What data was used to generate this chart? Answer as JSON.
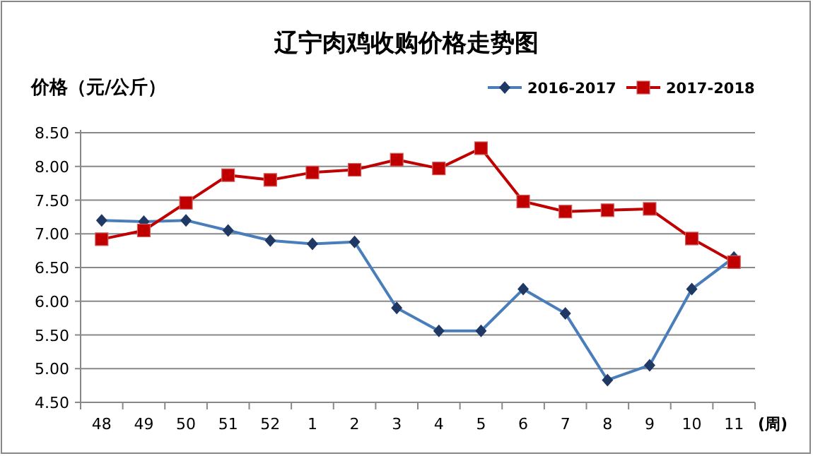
{
  "chart_data": {
    "type": "line",
    "title": "辽宁肉鸡收购价格走势图",
    "ylabel": "价格（元/公斤）",
    "xlabel": "(周)",
    "categories": [
      "48",
      "49",
      "50",
      "51",
      "52",
      "1",
      "2",
      "3",
      "4",
      "5",
      "6",
      "7",
      "8",
      "9",
      "10",
      "11"
    ],
    "series": [
      {
        "name": "2016-2017",
        "color": "#4a7ebb",
        "marker": "diamond",
        "values": [
          7.2,
          7.18,
          7.2,
          7.05,
          6.9,
          6.85,
          6.88,
          5.9,
          5.56,
          5.56,
          6.18,
          5.82,
          4.83,
          5.05,
          6.18,
          6.65
        ]
      },
      {
        "name": "2017-2018",
        "color": "#c00000",
        "marker": "square",
        "values": [
          6.92,
          7.05,
          7.46,
          7.87,
          7.8,
          7.91,
          7.95,
          8.1,
          7.97,
          8.27,
          7.48,
          7.33,
          7.35,
          7.37,
          6.93,
          6.58
        ]
      }
    ],
    "ylim": [
      4.5,
      8.5
    ],
    "yticks": [
      {
        "value": 4.5,
        "label": "4.50"
      },
      {
        "value": 5,
        "label": "5.00"
      },
      {
        "value": 5.5,
        "label": "5.50"
      },
      {
        "value": 6,
        "label": "6.00"
      },
      {
        "value": 6.5,
        "label": "6.50"
      },
      {
        "value": 7,
        "label": "7.00"
      },
      {
        "value": 7.5,
        "label": "7.50"
      },
      {
        "value": 8,
        "label": "8.00"
      },
      {
        "value": 8.5,
        "label": "8.50"
      }
    ],
    "grid": "y",
    "legend": "top right",
    "line_style": "solid"
  }
}
